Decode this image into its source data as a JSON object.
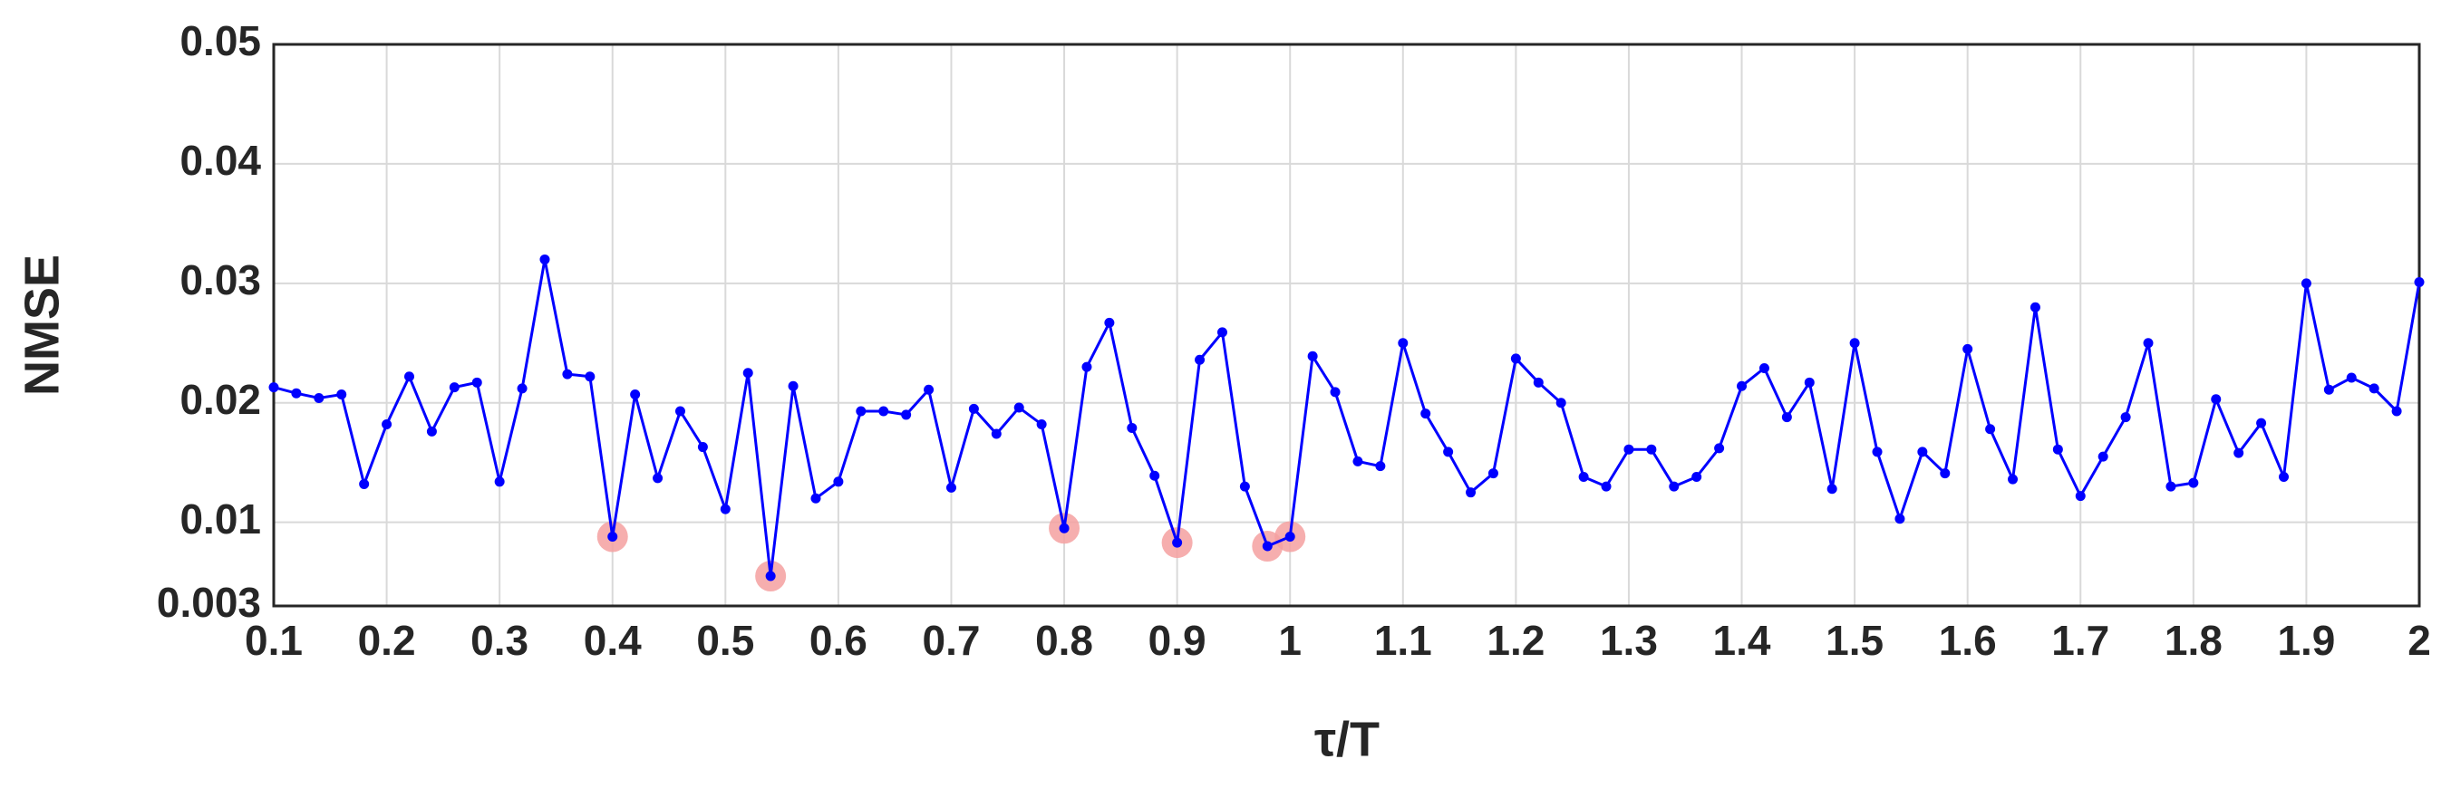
{
  "chart_data": {
    "type": "line",
    "xlabel": "τ/T",
    "ylabel": "NMSE",
    "x": [
      0.1,
      0.12,
      0.14,
      0.16,
      0.18,
      0.2,
      0.22,
      0.24,
      0.26,
      0.28,
      0.3,
      0.32,
      0.34,
      0.36,
      0.38,
      0.4,
      0.42,
      0.44,
      0.46,
      0.48,
      0.5,
      0.52,
      0.54,
      0.56,
      0.58,
      0.6,
      0.62,
      0.64,
      0.66,
      0.68,
      0.7,
      0.72,
      0.74,
      0.76,
      0.78,
      0.8,
      0.82,
      0.84,
      0.86,
      0.88,
      0.9,
      0.92,
      0.94,
      0.96,
      0.98,
      1,
      1.02,
      1.04,
      1.06,
      1.08,
      1.1,
      1.12,
      1.14,
      1.16,
      1.18,
      1.2,
      1.22,
      1.24,
      1.26,
      1.28,
      1.3,
      1.32,
      1.34,
      1.36,
      1.38,
      1.4,
      1.42,
      1.44,
      1.46,
      1.48,
      1.5,
      1.52,
      1.54,
      1.56,
      1.58,
      1.6,
      1.62,
      1.64,
      1.66,
      1.68,
      1.7,
      1.72,
      1.74,
      1.76,
      1.78,
      1.8,
      1.82,
      1.84,
      1.86,
      1.88,
      1.9,
      1.92,
      1.94,
      1.96,
      1.98,
      2
    ],
    "series": [
      {
        "color": "#0000ff",
        "style": "line",
        "values": [
          0.0213,
          0.0208,
          0.0204,
          0.0207,
          0.0132,
          0.0182,
          0.0222,
          0.0176,
          0.0213,
          0.0217,
          0.0134,
          0.0212,
          0.032,
          0.0224,
          0.0222,
          0.0088,
          0.0207,
          0.0137,
          0.0193,
          0.0163,
          0.0111,
          0.0225,
          0.0055,
          0.0214,
          0.012,
          0.0134,
          0.0193,
          0.0193,
          0.019,
          0.0211,
          0.0129,
          0.0195,
          0.0174,
          0.0196,
          0.0182,
          0.0095,
          0.023,
          0.0267,
          0.0179,
          0.0139,
          0.0083,
          0.0236,
          0.0259,
          0.013,
          0.008,
          0.0088,
          0.0239,
          0.0209,
          0.0151,
          0.0147,
          0.025,
          0.0191,
          0.0159,
          0.0125,
          0.0141,
          0.0237,
          0.0217,
          0.02,
          0.0138,
          0.013,
          0.0161,
          0.0161,
          0.013,
          0.0138,
          0.0162,
          0.0214,
          0.0229,
          0.0188,
          0.0217,
          0.0128,
          0.025,
          0.0159,
          0.0103,
          0.0159,
          0.0141,
          0.0245,
          0.0178,
          0.0136,
          0.028,
          0.0161,
          0.0122,
          0.0155,
          0.0188,
          0.025,
          0.013,
          0.0133,
          0.0203,
          0.0158,
          0.0183,
          0.0138,
          0.03,
          0.0211,
          0.0221,
          0.0212,
          0.0193,
          0.0301
        ]
      },
      {
        "color": "#f4a0a0",
        "style": "marker",
        "values": [
          null,
          null,
          null,
          null,
          null,
          null,
          null,
          null,
          null,
          null,
          null,
          null,
          null,
          null,
          null,
          0.0088,
          null,
          null,
          null,
          null,
          null,
          null,
          0.0055,
          null,
          null,
          null,
          null,
          null,
          null,
          null,
          null,
          null,
          null,
          null,
          null,
          0.0095,
          null,
          null,
          null,
          null,
          0.0083,
          null,
          null,
          null,
          0.008,
          0.0088,
          null,
          null,
          null,
          null,
          null,
          null,
          null,
          null,
          null,
          null,
          null,
          null,
          null,
          null,
          null,
          null,
          null,
          null,
          null,
          null,
          null,
          null,
          null,
          null,
          null,
          null,
          null,
          null,
          null,
          null,
          null,
          null,
          null,
          null,
          null,
          null,
          null,
          null,
          null,
          null,
          null,
          null,
          null,
          null,
          null,
          null,
          null,
          null,
          null,
          null
        ]
      }
    ],
    "xlim": [
      0.1,
      2
    ],
    "xticks": [
      0.1,
      0.2,
      0.3,
      0.4,
      0.5,
      0.6,
      0.7,
      0.8,
      0.9,
      1,
      1.1,
      1.2,
      1.3,
      1.4,
      1.5,
      1.6,
      1.7,
      1.8,
      1.9,
      2
    ],
    "ylim": [
      0.003,
      0.05
    ],
    "yticks": [
      0.003,
      0.01,
      0.02,
      0.03,
      0.04,
      0.05
    ],
    "grid": true
  }
}
